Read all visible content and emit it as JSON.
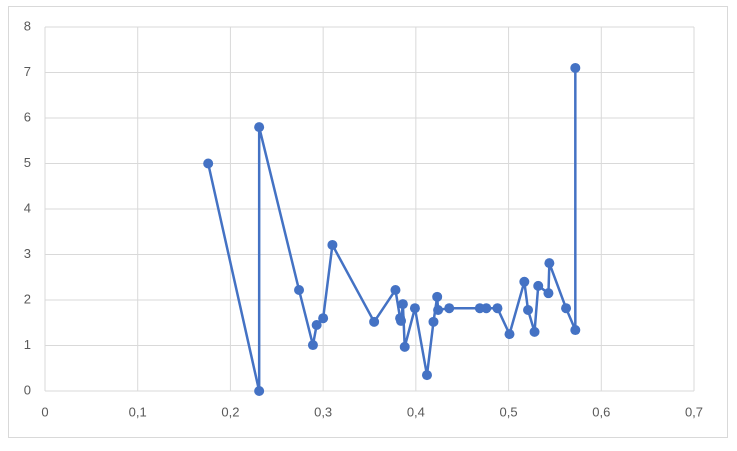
{
  "chart_data": {
    "type": "line",
    "x": [
      0.176,
      0.231,
      0.231,
      0.274,
      0.289,
      0.293,
      0.3,
      0.31,
      0.355,
      0.378,
      0.383,
      0.384,
      0.386,
      0.388,
      0.399,
      0.412,
      0.419,
      0.423,
      0.424,
      0.436,
      0.469,
      0.476,
      0.488,
      0.501,
      0.517,
      0.521,
      0.528,
      0.532,
      0.543,
      0.544,
      0.562,
      0.572,
      0.572
    ],
    "series": [
      {
        "color": "#4472c4",
        "values": [
          5.0,
          0,
          5.8,
          2.22,
          1.01,
          1.45,
          1.6,
          3.21,
          1.52,
          2.22,
          1.6,
          1.54,
          1.91,
          0.97,
          1.82,
          0.35,
          1.52,
          2.07,
          1.78,
          1.82,
          1.82,
          1.82,
          1.82,
          1.25,
          2.4,
          1.78,
          1.3,
          2.31,
          2.15,
          2.81,
          1.82,
          1.34,
          7.1
        ]
      }
    ],
    "xlim": [
      0,
      0.7
    ],
    "xticks": [
      0,
      {
        "value": 0.1,
        "label": "0,1"
      },
      {
        "value": 0.2,
        "label": "0,2"
      },
      {
        "value": 0.3,
        "label": "0,3"
      },
      {
        "value": 0.4,
        "label": "0,4"
      },
      {
        "value": 0.5,
        "label": "0,5"
      },
      {
        "value": 0.6,
        "label": "0,6"
      },
      {
        "value": 0.7,
        "label": "0,7"
      }
    ],
    "ylim": [
      0,
      8
    ],
    "yticks": [
      0,
      1,
      2,
      3,
      4,
      5,
      6,
      7,
      8
    ],
    "grid": true
  }
}
